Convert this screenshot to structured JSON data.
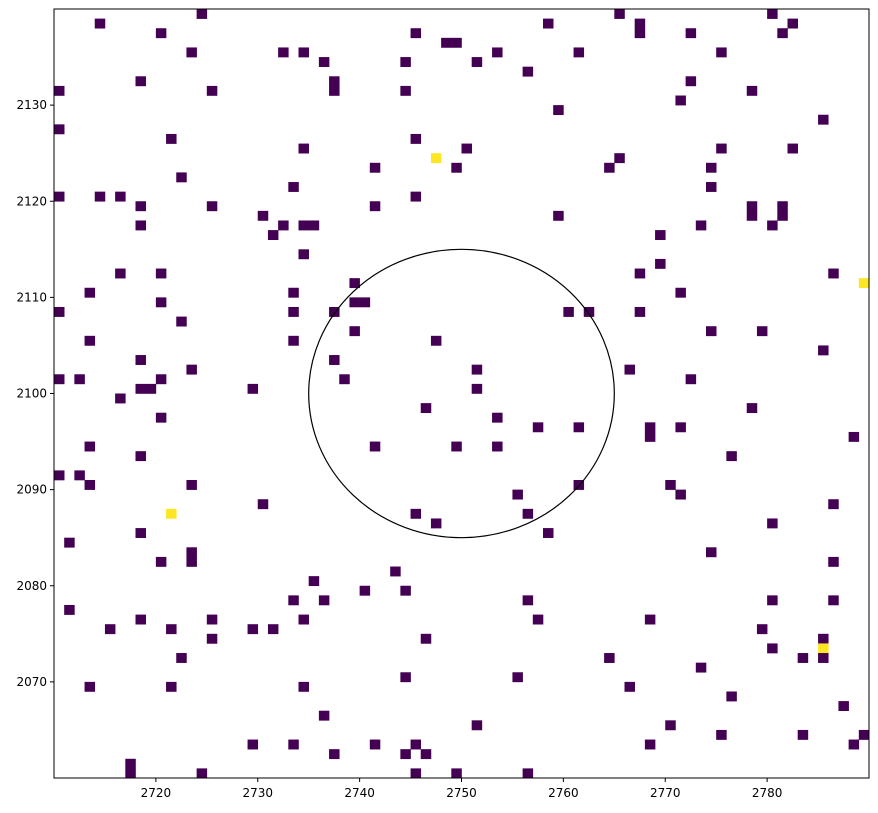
{
  "chart_data": {
    "type": "heatmap",
    "title": "",
    "xlabel": "",
    "ylabel": "",
    "xlim": [
      2710,
      2789
    ],
    "ylim": [
      2060,
      2139
    ],
    "x_ticks": [
      2720,
      2730,
      2740,
      2750,
      2760,
      2770,
      2780
    ],
    "y_ticks": [
      2070,
      2080,
      2090,
      2100,
      2110,
      2120,
      2130
    ],
    "grid": false,
    "colors": {
      "low": "#440154",
      "high": "#fde725",
      "background": "#ffffff",
      "circle": "#000000"
    },
    "circle": {
      "center": [
        2750,
        2100
      ],
      "radius": 15
    },
    "cells": [
      [
        2714,
        2138,
        1
      ],
      [
        2720,
        2137,
        1
      ],
      [
        2723,
        2135,
        1
      ],
      [
        2724,
        2139,
        1
      ],
      [
        2732,
        2135,
        1
      ],
      [
        2734,
        2135,
        1
      ],
      [
        2736,
        2134,
        1
      ],
      [
        2744,
        2134,
        1
      ],
      [
        2745,
        2137,
        1
      ],
      [
        2748,
        2136,
        1
      ],
      [
        2749,
        2136,
        1
      ],
      [
        2751,
        2134,
        1
      ],
      [
        2753,
        2135,
        1
      ],
      [
        2756,
        2133,
        1
      ],
      [
        2758,
        2138,
        1
      ],
      [
        2761,
        2135,
        1
      ],
      [
        2765,
        2139,
        1
      ],
      [
        2767,
        2138,
        1
      ],
      [
        2767,
        2137,
        1
      ],
      [
        2772,
        2137,
        1
      ],
      [
        2775,
        2135,
        1
      ],
      [
        2780,
        2139,
        1
      ],
      [
        2781,
        2137,
        1
      ],
      [
        2782,
        2138,
        1
      ],
      [
        2710,
        2131,
        1
      ],
      [
        2718,
        2132,
        1
      ],
      [
        2725,
        2131,
        1
      ],
      [
        2737,
        2132,
        1
      ],
      [
        2737,
        2131,
        1
      ],
      [
        2744,
        2131,
        1
      ],
      [
        2759,
        2129,
        1
      ],
      [
        2771,
        2130,
        1
      ],
      [
        2772,
        2132,
        1
      ],
      [
        2778,
        2131,
        1
      ],
      [
        2785,
        2128,
        1
      ],
      [
        2710,
        2127,
        1
      ],
      [
        2721,
        2126,
        1
      ],
      [
        2734,
        2125,
        1
      ],
      [
        2745,
        2126,
        1
      ],
      [
        2747,
        2124,
        2
      ],
      [
        2749,
        2123,
        1
      ],
      [
        2750,
        2125,
        1
      ],
      [
        2764,
        2123,
        1
      ],
      [
        2765,
        2124,
        1
      ],
      [
        2774,
        2123,
        1
      ],
      [
        2775,
        2125,
        1
      ],
      [
        2782,
        2125,
        1
      ],
      [
        2722,
        2122,
        1
      ],
      [
        2741,
        2123,
        1
      ],
      [
        2710,
        2120,
        1
      ],
      [
        2714,
        2120,
        1
      ],
      [
        2716,
        2120,
        1
      ],
      [
        2718,
        2119,
        1
      ],
      [
        2718,
        2117,
        1
      ],
      [
        2725,
        2119,
        1
      ],
      [
        2730,
        2118,
        1
      ],
      [
        2731,
        2116,
        1
      ],
      [
        2732,
        2117,
        1
      ],
      [
        2733,
        2121,
        1
      ],
      [
        2734,
        2117,
        1
      ],
      [
        2735,
        2117,
        1
      ],
      [
        2741,
        2119,
        1
      ],
      [
        2745,
        2120,
        1
      ],
      [
        2759,
        2118,
        1
      ],
      [
        2769,
        2116,
        1
      ],
      [
        2773,
        2117,
        1
      ],
      [
        2774,
        2121,
        1
      ],
      [
        2778,
        2119,
        1
      ],
      [
        2778,
        2118,
        1
      ],
      [
        2780,
        2117,
        1
      ],
      [
        2781,
        2119,
        1
      ],
      [
        2781,
        2118,
        1
      ],
      [
        2716,
        2112,
        1
      ],
      [
        2720,
        2112,
        1
      ],
      [
        2713,
        2110,
        1
      ],
      [
        2710,
        2108,
        1
      ],
      [
        2720,
        2109,
        1
      ],
      [
        2722,
        2107,
        1
      ],
      [
        2713,
        2105,
        1
      ],
      [
        2733,
        2110,
        1
      ],
      [
        2733,
        2108,
        1
      ],
      [
        2734,
        2114,
        1
      ],
      [
        2733,
        2105,
        1
      ],
      [
        2737,
        2108,
        1
      ],
      [
        2739,
        2111,
        1
      ],
      [
        2739,
        2109,
        1
      ],
      [
        2740,
        2109,
        1
      ],
      [
        2739,
        2106,
        1
      ],
      [
        2747,
        2105,
        1
      ],
      [
        2760,
        2108,
        1
      ],
      [
        2762,
        2108,
        1
      ],
      [
        2767,
        2112,
        1
      ],
      [
        2769,
        2113,
        1
      ],
      [
        2771,
        2110,
        1
      ],
      [
        2767,
        2108,
        1
      ],
      [
        2774,
        2106,
        1
      ],
      [
        2779,
        2106,
        1
      ],
      [
        2785,
        2104,
        1
      ],
      [
        2786,
        2112,
        1
      ],
      [
        2789,
        2111,
        2
      ],
      [
        2710,
        2101,
        1
      ],
      [
        2712,
        2101,
        1
      ],
      [
        2718,
        2103,
        1
      ],
      [
        2718,
        2100,
        1
      ],
      [
        2719,
        2100,
        1
      ],
      [
        2720,
        2101,
        1
      ],
      [
        2716,
        2099,
        1
      ],
      [
        2720,
        2097,
        1
      ],
      [
        2723,
        2102,
        1
      ],
      [
        2729,
        2100,
        1
      ],
      [
        2737,
        2103,
        1
      ],
      [
        2738,
        2101,
        1
      ],
      [
        2751,
        2102,
        1
      ],
      [
        2751,
        2100,
        1
      ],
      [
        2746,
        2098,
        1
      ],
      [
        2753,
        2097,
        1
      ],
      [
        2766,
        2102,
        1
      ],
      [
        2772,
        2101,
        1
      ],
      [
        2778,
        2098,
        1
      ],
      [
        2713,
        2094,
        1
      ],
      [
        2718,
        2093,
        1
      ],
      [
        2710,
        2091,
        1
      ],
      [
        2712,
        2091,
        1
      ],
      [
        2713,
        2090,
        1
      ],
      [
        2723,
        2090,
        1
      ],
      [
        2730,
        2088,
        1
      ],
      [
        2721,
        2087,
        2
      ],
      [
        2741,
        2094,
        1
      ],
      [
        2749,
        2094,
        1
      ],
      [
        2753,
        2094,
        1
      ],
      [
        2757,
        2096,
        1
      ],
      [
        2761,
        2096,
        1
      ],
      [
        2755,
        2089,
        1
      ],
      [
        2761,
        2090,
        1
      ],
      [
        2756,
        2087,
        1
      ],
      [
        2745,
        2087,
        1
      ],
      [
        2747,
        2086,
        1
      ],
      [
        2758,
        2085,
        1
      ],
      [
        2768,
        2096,
        1
      ],
      [
        2768,
        2095,
        1
      ],
      [
        2771,
        2096,
        1
      ],
      [
        2770,
        2090,
        1
      ],
      [
        2771,
        2089,
        1
      ],
      [
        2776,
        2093,
        1
      ],
      [
        2788,
        2095,
        1
      ],
      [
        2786,
        2088,
        1
      ],
      [
        2780,
        2086,
        1
      ],
      [
        2711,
        2084,
        1
      ],
      [
        2718,
        2085,
        1
      ],
      [
        2720,
        2082,
        1
      ],
      [
        2723,
        2083,
        1
      ],
      [
        2723,
        2082,
        1
      ],
      [
        2711,
        2077,
        1
      ],
      [
        2715,
        2075,
        1
      ],
      [
        2718,
        2076,
        1
      ],
      [
        2721,
        2075,
        1
      ],
      [
        2725,
        2076,
        1
      ],
      [
        2725,
        2074,
        1
      ],
      [
        2729,
        2075,
        1
      ],
      [
        2731,
        2075,
        1
      ],
      [
        2733,
        2078,
        1
      ],
      [
        2734,
        2076,
        1
      ],
      [
        2735,
        2080,
        1
      ],
      [
        2736,
        2078,
        1
      ],
      [
        2740,
        2079,
        1
      ],
      [
        2743,
        2081,
        1
      ],
      [
        2744,
        2079,
        1
      ],
      [
        2746,
        2074,
        1
      ],
      [
        2756,
        2078,
        1
      ],
      [
        2757,
        2076,
        1
      ],
      [
        2768,
        2076,
        1
      ],
      [
        2774,
        2083,
        1
      ],
      [
        2780,
        2078,
        1
      ],
      [
        2786,
        2082,
        1
      ],
      [
        2786,
        2078,
        1
      ],
      [
        2779,
        2075,
        1
      ],
      [
        2785,
        2074,
        1
      ],
      [
        2785,
        2073,
        2
      ],
      [
        2780,
        2073,
        1
      ],
      [
        2783,
        2072,
        1
      ],
      [
        2785,
        2072,
        1
      ],
      [
        2764,
        2072,
        1
      ],
      [
        2773,
        2071,
        1
      ],
      [
        2713,
        2069,
        1
      ],
      [
        2721,
        2069,
        1
      ],
      [
        2722,
        2072,
        1
      ],
      [
        2734,
        2069,
        1
      ],
      [
        2744,
        2070,
        1
      ],
      [
        2755,
        2070,
        1
      ],
      [
        2766,
        2069,
        1
      ],
      [
        2776,
        2068,
        1
      ],
      [
        2787,
        2067,
        1
      ],
      [
        2736,
        2066,
        1
      ],
      [
        2751,
        2065,
        1
      ],
      [
        2770,
        2065,
        1
      ],
      [
        2729,
        2063,
        1
      ],
      [
        2733,
        2063,
        1
      ],
      [
        2737,
        2062,
        1
      ],
      [
        2741,
        2063,
        1
      ],
      [
        2744,
        2062,
        1
      ],
      [
        2745,
        2063,
        1
      ],
      [
        2746,
        2062,
        1
      ],
      [
        2768,
        2063,
        1
      ],
      [
        2775,
        2064,
        1
      ],
      [
        2783,
        2064,
        1
      ],
      [
        2788,
        2063,
        1
      ],
      [
        2789,
        2064,
        1
      ],
      [
        2717,
        2061,
        1
      ],
      [
        2717,
        2060,
        1
      ],
      [
        2724,
        2060,
        1
      ],
      [
        2745,
        2060,
        1
      ],
      [
        2749,
        2060,
        1
      ],
      [
        2756,
        2060,
        1
      ]
    ]
  }
}
